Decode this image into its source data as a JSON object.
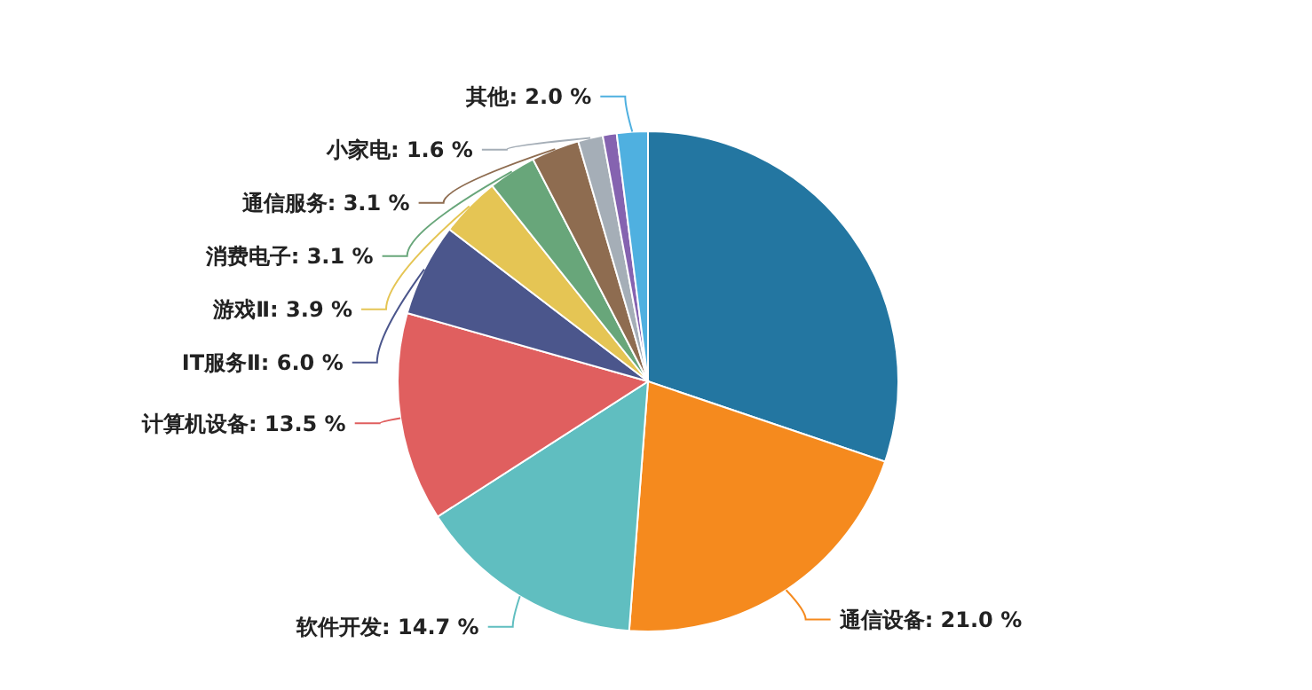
{
  "chart_data": {
    "type": "pie",
    "categories": [
      null,
      "通信设备",
      "软件开发",
      "计算机设备",
      "IT服务Ⅱ",
      "游戏Ⅱ",
      "消费电子",
      "通信服务",
      "小家电",
      null,
      "其他"
    ],
    "values": [
      30.2,
      21.0,
      14.7,
      13.5,
      6.0,
      3.9,
      3.1,
      3.1,
      1.6,
      0.9,
      2.0
    ],
    "colors": [
      "#2376a1",
      "#f58a1e",
      "#60bec0",
      "#e05f5f",
      "#4b568c",
      "#e5c554",
      "#68a67a",
      "#8e6c50",
      "#a5aeb7",
      "#8563b0",
      "#4fb0e0"
    ],
    "value_labels": [
      null,
      "21.0 %",
      "14.7 %",
      "13.5 %",
      "6.0 %",
      "3.9 %",
      "3.1 %",
      "3.1 %",
      "1.6 %",
      null,
      "2.0 %"
    ]
  }
}
